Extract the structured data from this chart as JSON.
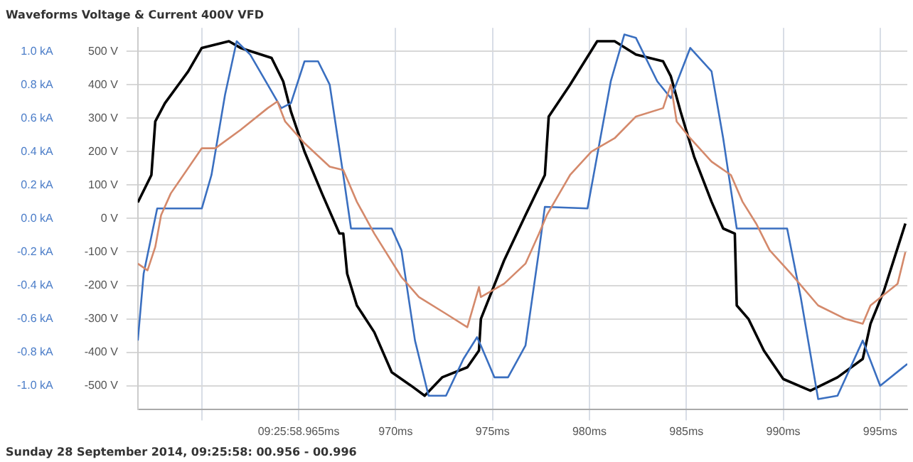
{
  "chart_data": {
    "type": "line",
    "title": "Waveforms Voltage & Current 400V VFD",
    "annotations": [
      "Sunday 28 September 2014, 09:25:58: 00.956 - 00.996"
    ],
    "xlim": [
      956.7,
      996.4
    ],
    "xticks": [
      {
        "value": 960,
        "label": null
      },
      {
        "value": 965,
        "label": "09:25:58.965ms"
      },
      {
        "value": 970,
        "label": "970ms"
      },
      {
        "value": 975,
        "label": "975ms"
      },
      {
        "value": 980,
        "label": "980ms"
      },
      {
        "value": 985,
        "label": "985ms"
      },
      {
        "value": 990,
        "label": "990ms"
      },
      {
        "value": 995,
        "label": "995ms"
      }
    ],
    "ylim": [
      -570,
      570
    ],
    "yticks": [
      {
        "value": -500,
        "label": "-500 V"
      },
      {
        "value": -400,
        "label": "-400 V"
      },
      {
        "value": -300,
        "label": "-300 V"
      },
      {
        "value": -200,
        "label": "-200 V"
      },
      {
        "value": -100,
        "label": "-100 V"
      },
      {
        "value": 0,
        "label": "0 V"
      },
      {
        "value": 100,
        "label": "100 V"
      },
      {
        "value": 200,
        "label": "200 V"
      },
      {
        "value": 300,
        "label": "300 V"
      },
      {
        "value": 400,
        "label": "400 V"
      },
      {
        "value": 500,
        "label": "500 V"
      }
    ],
    "y2lim": [
      -1.14,
      1.14
    ],
    "y2ticks": [
      {
        "value": -1.0,
        "label": "-1.0 kA"
      },
      {
        "value": -0.8,
        "label": "-0.8 kA"
      },
      {
        "value": -0.6,
        "label": "-0.6 kA"
      },
      {
        "value": -0.4,
        "label": "-0.4 kA"
      },
      {
        "value": -0.2,
        "label": "-0.2 kA"
      },
      {
        "value": 0,
        "label": "0.0 kA"
      },
      {
        "value": 0.2,
        "label": "0.2 kA"
      },
      {
        "value": 0.4,
        "label": "0.4 kA"
      },
      {
        "value": 0.6,
        "label": "0.6 kA"
      },
      {
        "value": 0.8,
        "label": "0.8 kA"
      },
      {
        "value": 1.0,
        "label": "1.0 kA"
      }
    ],
    "grid": true,
    "legend": false,
    "marker": "none",
    "line_style": "solid",
    "series": [
      {
        "color": "#d4896b",
        "x": [
          956.7,
          957.2,
          957.6,
          957.9,
          958.4,
          960.0,
          960.7,
          962.0,
          963.4,
          963.9,
          964.3,
          965.3,
          966.6,
          967.3,
          968.0,
          968.9,
          970.3,
          971.2,
          972.6,
          973.7,
          974.3,
          974.4,
          975.6,
          976.7,
          977.4,
          977.8,
          979.0,
          980.1,
          981.3,
          982.4,
          983.8,
          984.2,
          984.5,
          985.2,
          986.3,
          987.3,
          987.9,
          988.6,
          989.3,
          990.4,
          991.8,
          993.2,
          994.1,
          994.5,
          995.9,
          996.3
        ],
        "values": [
          -135,
          -155,
          -85,
          10,
          75,
          210,
          210,
          265,
          330,
          350,
          290,
          225,
          155,
          145,
          50,
          -45,
          -175,
          -235,
          -285,
          -325,
          -205,
          -235,
          -195,
          -135,
          -45,
          10,
          130,
          200,
          240,
          305,
          330,
          400,
          290,
          240,
          170,
          130,
          50,
          -15,
          -95,
          -165,
          -260,
          -300,
          -315,
          -260,
          -195,
          -100
        ]
      },
      {
        "color": "#3a6fc0",
        "axis": "y2",
        "x": [
          956.7,
          957.0,
          957.7,
          960.0,
          960.5,
          961.2,
          961.8,
          962.5,
          963.4,
          964.1,
          964.6,
          965.3,
          966.0,
          966.6,
          967.3,
          967.7,
          968.4,
          969.8,
          970.3,
          971.0,
          971.7,
          972.6,
          973.5,
          974.2,
          974.4,
          975.1,
          975.8,
          976.7,
          977.4,
          977.7,
          979.9,
          981.1,
          981.8,
          982.4,
          983.5,
          984.2,
          985.2,
          986.3,
          986.9,
          987.6,
          990.2,
          990.9,
          991.8,
          992.8,
          994.1,
          995.0,
          996.4
        ],
        "values": [
          -0.73,
          -0.33,
          0.06,
          0.06,
          0.26,
          0.74,
          1.06,
          0.98,
          0.8,
          0.66,
          0.69,
          0.94,
          0.94,
          0.8,
          0.26,
          -0.06,
          -0.06,
          -0.06,
          -0.19,
          -0.73,
          -1.06,
          -1.06,
          -0.84,
          -0.71,
          -0.76,
          -0.95,
          -0.95,
          -0.76,
          -0.19,
          0.07,
          0.06,
          0.82,
          1.1,
          1.08,
          0.82,
          0.72,
          1.02,
          0.88,
          0.48,
          -0.06,
          -0.06,
          -0.47,
          -1.08,
          -1.06,
          -0.73,
          -1.0,
          -0.87
        ]
      },
      {
        "color": "#000000",
        "x": [
          956.7,
          957.4,
          957.6,
          958.1,
          959.3,
          960.0,
          961.4,
          962.0,
          963.6,
          964.2,
          964.6,
          965.3,
          966.2,
          967.1,
          967.3,
          967.5,
          968.0,
          968.9,
          969.8,
          970.8,
          971.5,
          972.4,
          973.7,
          974.3,
          974.4,
          975.6,
          976.7,
          977.7,
          977.9,
          979.0,
          980.4,
          981.3,
          982.4,
          983.8,
          984.2,
          984.7,
          985.4,
          986.3,
          986.9,
          987.5,
          987.6,
          988.2,
          989.0,
          990.0,
          991.4,
          992.8,
          994.1,
          994.5,
          995.2,
          996.3
        ],
        "values": [
          48,
          130,
          290,
          345,
          440,
          510,
          530,
          510,
          480,
          410,
          320,
          200,
          75,
          -45,
          -45,
          -165,
          -260,
          -340,
          -460,
          -500,
          -530,
          -475,
          -445,
          -395,
          -300,
          -125,
          10,
          130,
          305,
          400,
          530,
          530,
          490,
          470,
          425,
          320,
          185,
          50,
          -30,
          -45,
          -260,
          -300,
          -395,
          -480,
          -515,
          -475,
          -420,
          -315,
          -215,
          -15
        ]
      }
    ]
  }
}
